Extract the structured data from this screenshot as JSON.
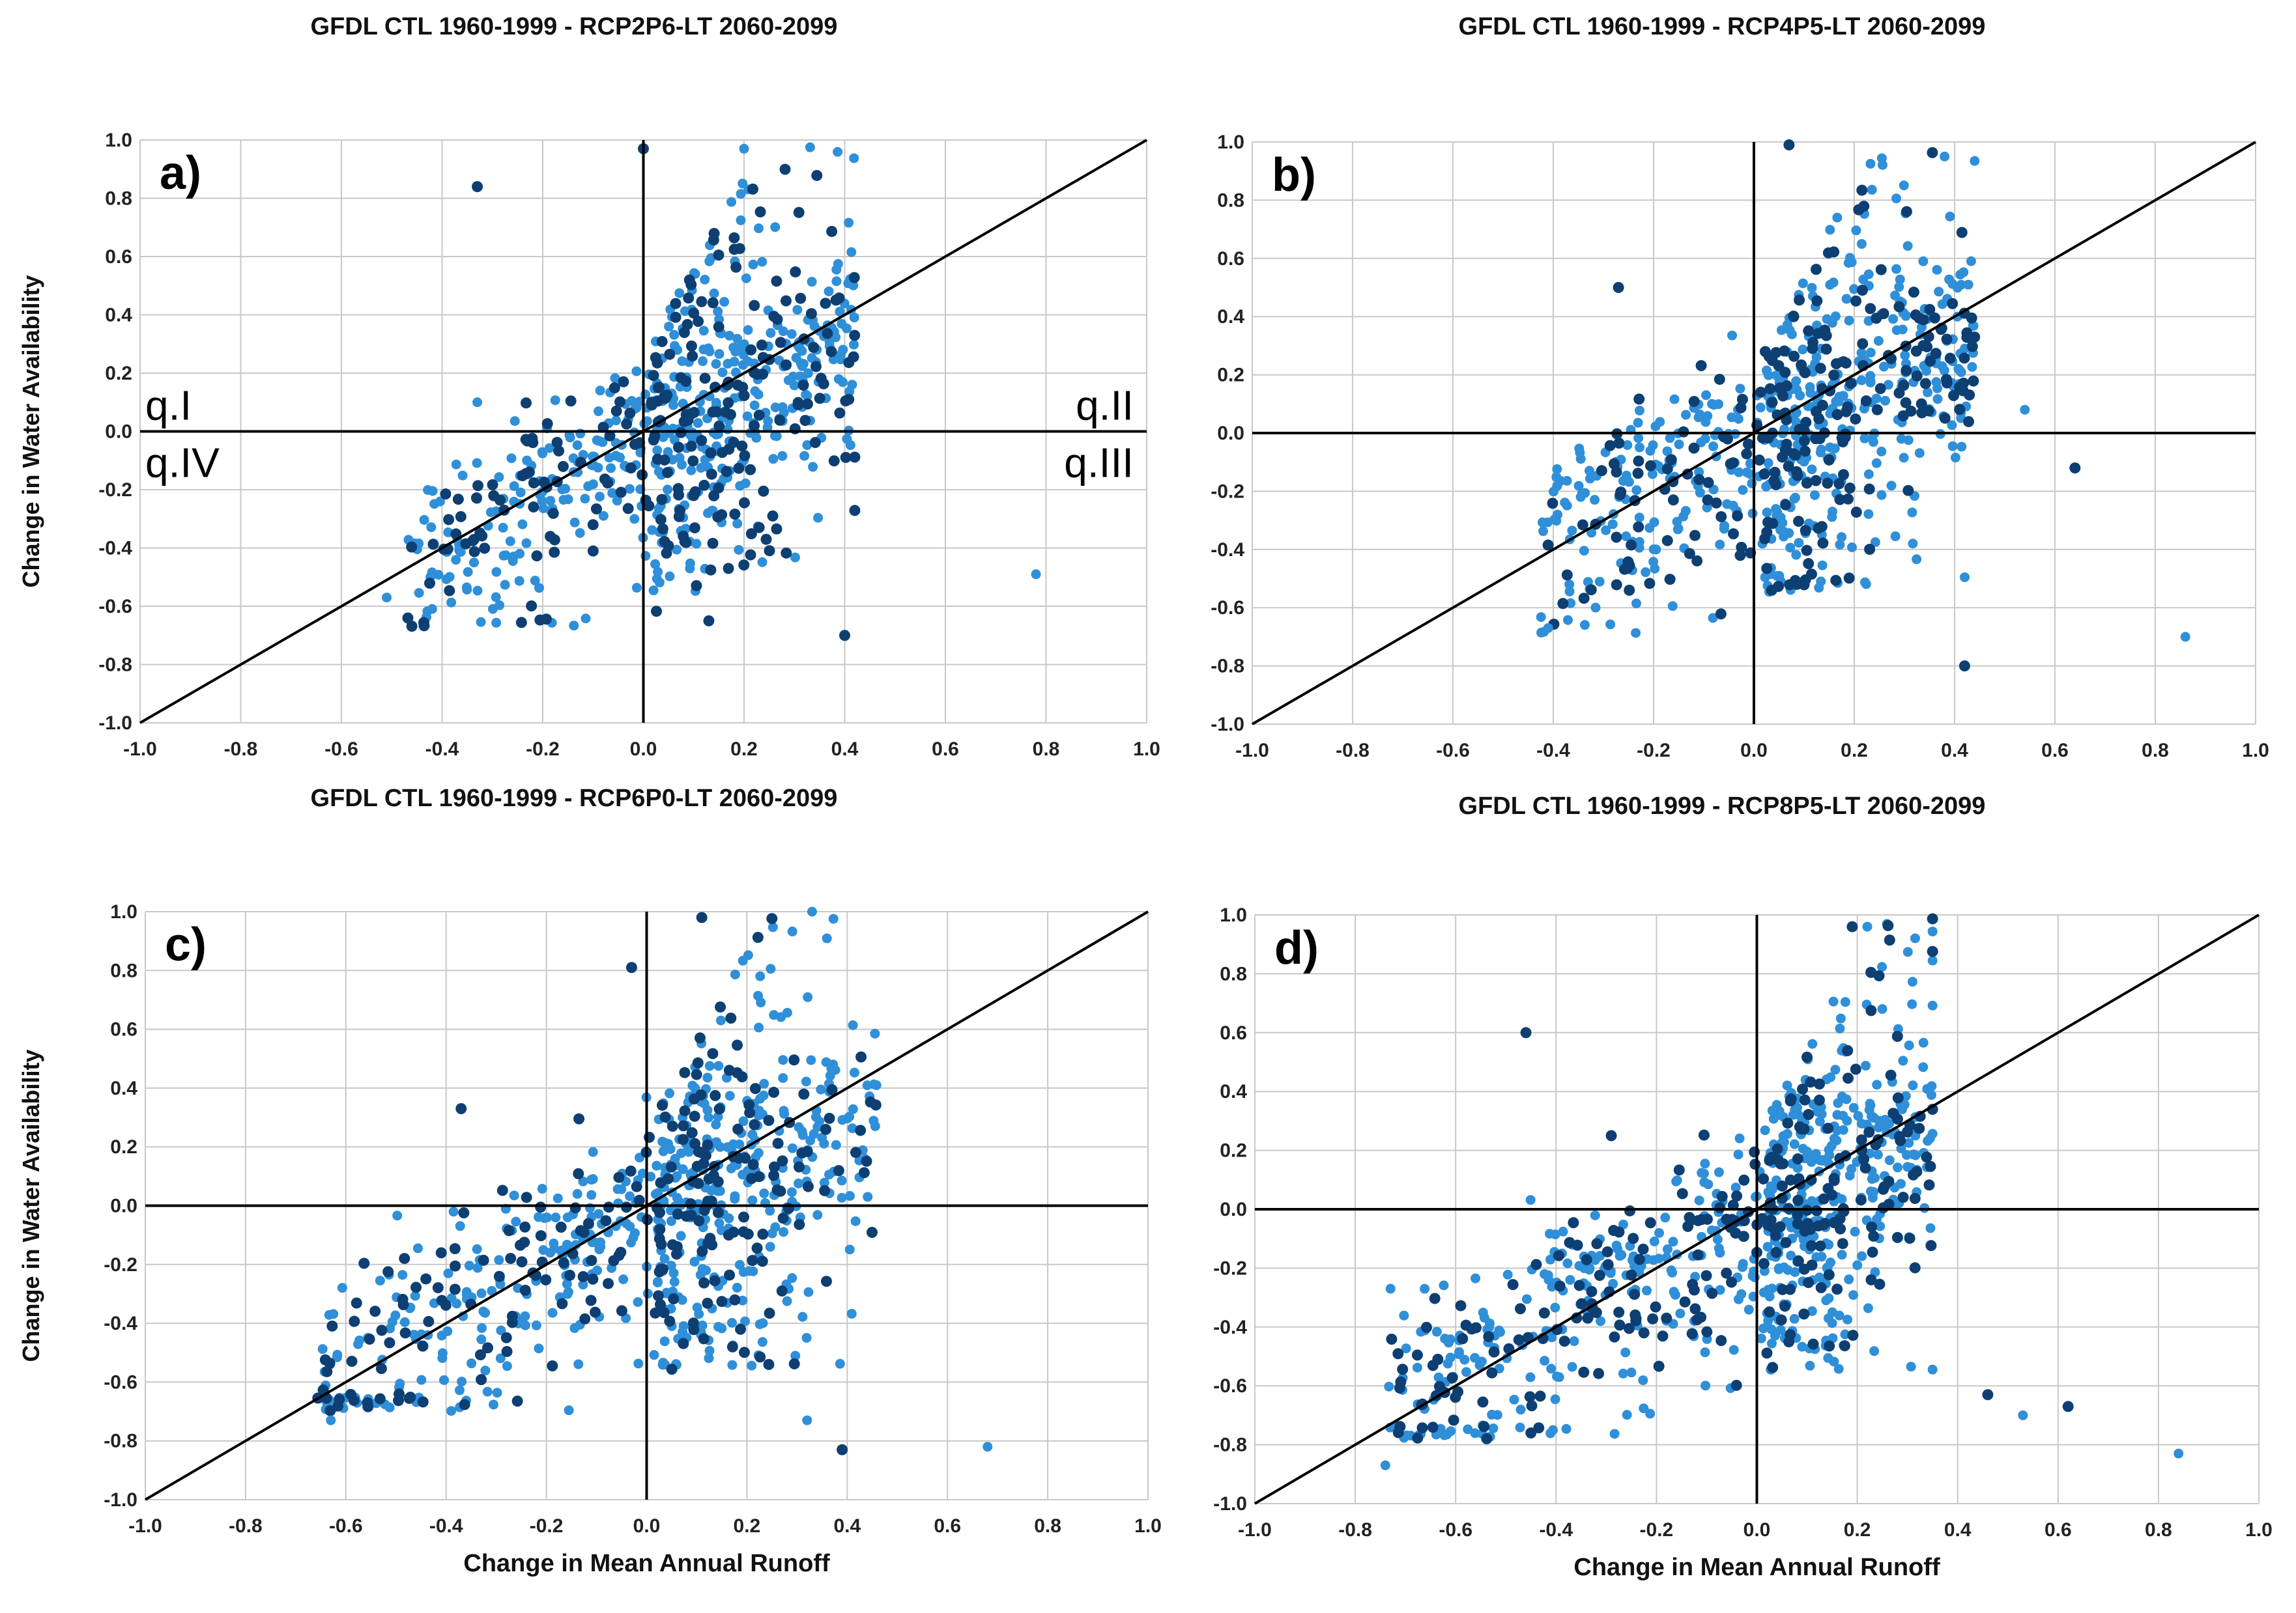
{
  "colors": {
    "light": "#2f8fd8",
    "dark": "#0d3f73",
    "grid": "#c8c8c8",
    "axis": "#000000"
  },
  "chart_data": [
    {
      "type": "scatter",
      "id": "a",
      "letter": "a)",
      "title": "GFDL CTL 1960-1999  - RCP2P6-LT 2060-2099",
      "xlabel": "",
      "ylabel": "Change in Water  Availability",
      "xlim": [
        -1.0,
        1.0
      ],
      "ylim": [
        -1.0,
        1.0
      ],
      "xticks": [
        "-1.0",
        "-0.8",
        "-0.6",
        "-0.4",
        "-0.2",
        "0.0",
        "0.2",
        "0.4",
        "0.6",
        "0.8",
        "1.0"
      ],
      "yticks": [
        "-1.0",
        "-0.8",
        "-0.6",
        "-0.4",
        "-0.2",
        "0.0",
        "0.2",
        "0.4",
        "0.6",
        "0.8",
        "1.0"
      ],
      "grid": true,
      "reference_line": "y = x",
      "quadrant_labels": [
        "q.I",
        "q.II",
        "q.III",
        "q.IV"
      ],
      "highlight_points": [
        [
          -0.33,
          0.84
        ],
        [
          0.78,
          -0.49
        ],
        [
          0.4,
          -0.7
        ],
        [
          -0.51,
          -0.57
        ],
        [
          0.0,
          0.97
        ],
        [
          0.2,
          0.97
        ],
        [
          0.13,
          -0.65
        ],
        [
          -0.33,
          0.1
        ]
      ],
      "cluster": {
        "n": 700,
        "seed": 11,
        "xmin": -0.47,
        "xmax": 0.42,
        "upper_slope": 3.2,
        "upper_clip": 0.99,
        "lower_min": -0.68,
        "dark_fraction": 0.32
      }
    },
    {
      "type": "scatter",
      "id": "b",
      "letter": "b)",
      "title": "GFDL CTL 1960-1999  - RCP4P5-LT 2060-2099",
      "xlabel": "",
      "ylabel": "",
      "xlim": [
        -1.0,
        1.0
      ],
      "ylim": [
        -1.0,
        1.0
      ],
      "xticks": [
        "-1.0",
        "-0.8",
        "-0.6",
        "-0.4",
        "-0.2",
        "0.0",
        "0.2",
        "0.4",
        "0.6",
        "0.8",
        "1.0"
      ],
      "yticks": [
        "-1.0",
        "-0.8",
        "-0.6",
        "-0.4",
        "-0.2",
        "0.0",
        "0.2",
        "0.4",
        "0.6",
        "0.8",
        "1.0"
      ],
      "grid": true,
      "reference_line": "y = x",
      "quadrant_labels": [],
      "highlight_points": [
        [
          -0.27,
          0.5
        ],
        [
          0.86,
          -0.7
        ],
        [
          0.64,
          -0.12
        ],
        [
          0.54,
          0.08
        ],
        [
          0.42,
          -0.8
        ],
        [
          -0.41,
          -0.67
        ],
        [
          0.07,
          0.99
        ],
        [
          0.38,
          0.95
        ]
      ],
      "cluster": {
        "n": 720,
        "seed": 23,
        "xmin": -0.43,
        "xmax": 0.44,
        "upper_slope": 3.0,
        "upper_clip": 0.99,
        "lower_min": -0.69,
        "dark_fraction": 0.33
      }
    },
    {
      "type": "scatter",
      "id": "c",
      "letter": "c)",
      "title": "GFDL CTL 1960-1999  - RCP6P0-LT 2060-2099",
      "xlabel": "Change in Mean Annual Runoff",
      "ylabel": "Change in Water  Availability",
      "xlim": [
        -1.0,
        1.0
      ],
      "ylim": [
        -1.0,
        1.0
      ],
      "xticks": [
        "-1.0",
        "-0.8",
        "-0.6",
        "-0.4",
        "-0.2",
        "0.0",
        "0.2",
        "0.4",
        "0.6",
        "0.8",
        "1.0"
      ],
      "yticks": [
        "-1.0",
        "-0.8",
        "-0.6",
        "-0.4",
        "-0.2",
        "0.0",
        "0.2",
        "0.4",
        "0.6",
        "0.8",
        "1.0"
      ],
      "grid": true,
      "reference_line": "y = x",
      "quadrant_labels": [],
      "highlight_points": [
        [
          -0.37,
          0.33
        ],
        [
          0.68,
          -0.82
        ],
        [
          0.39,
          -0.83
        ],
        [
          0.32,
          -0.73
        ],
        [
          0.11,
          0.98
        ],
        [
          0.33,
          1.0
        ],
        [
          -0.03,
          0.81
        ],
        [
          -0.63,
          -0.73
        ]
      ],
      "cluster": {
        "n": 760,
        "seed": 37,
        "xmin": -0.66,
        "xmax": 0.46,
        "upper_slope": 3.1,
        "upper_clip": 0.99,
        "lower_min": -0.7,
        "dark_fraction": 0.34
      }
    },
    {
      "type": "scatter",
      "id": "d",
      "letter": "d)",
      "title": "GFDL CTL 1960-1999  - RCP8P5-LT 2060-2099",
      "xlabel": "Change in Mean Annual Runoff",
      "ylabel": "",
      "xlim": [
        -1.0,
        1.0
      ],
      "ylim": [
        -1.0,
        1.0
      ],
      "xticks": [
        "-1.0",
        "-0.8",
        "-0.6",
        "-0.4",
        "-0.2",
        "0.0",
        "0.2",
        "0.4",
        "0.6",
        "0.8",
        "1.0"
      ],
      "yticks": [
        "-1.0",
        "-0.8",
        "-0.6",
        "-0.4",
        "-0.2",
        "0.0",
        "0.2",
        "0.4",
        "0.6",
        "0.8",
        "1.0"
      ],
      "grid": true,
      "reference_line": "y = x",
      "quadrant_labels": [],
      "highlight_points": [
        [
          -0.46,
          0.6
        ],
        [
          0.84,
          -0.83
        ],
        [
          0.62,
          -0.67
        ],
        [
          0.53,
          -0.7
        ],
        [
          0.46,
          -0.63
        ],
        [
          -0.74,
          -0.87
        ],
        [
          0.19,
          0.96
        ],
        [
          0.22,
          0.96
        ],
        [
          -0.29,
          0.25
        ]
      ],
      "cluster": {
        "n": 820,
        "seed": 53,
        "xmin": -0.74,
        "xmax": 0.35,
        "upper_slope": 3.0,
        "upper_clip": 0.99,
        "lower_min": -0.78,
        "dark_fraction": 0.35
      }
    }
  ]
}
